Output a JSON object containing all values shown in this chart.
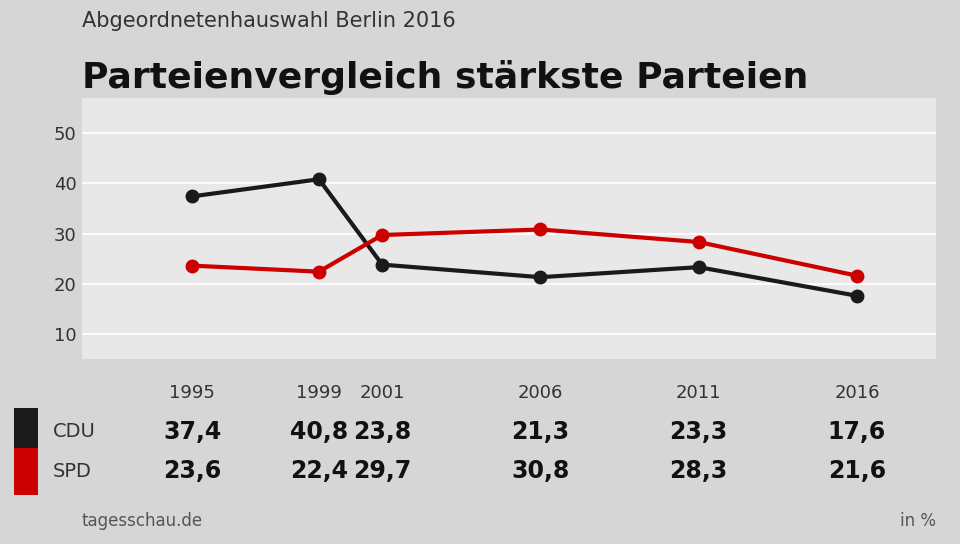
{
  "supertitle": "Abgeordnetenhauswahl Berlin 2016",
  "title": "Parteienvergleich stärkste Parteien",
  "years": [
    1995,
    1999,
    2001,
    2006,
    2011,
    2016
  ],
  "cdu": [
    37.4,
    40.8,
    23.8,
    21.3,
    23.3,
    17.6
  ],
  "spd": [
    23.6,
    22.4,
    29.7,
    30.8,
    28.3,
    21.6
  ],
  "cdu_color": "#1a1a1a",
  "spd_color": "#cc0000",
  "bg_color": "#d6d6d6",
  "plot_bg_color": "#e8e8e8",
  "table_bg_color": "#f5f5f5",
  "yticks": [
    10,
    20,
    30,
    40,
    50
  ],
  "ylim": [
    5,
    57
  ],
  "source": "tagesschau.de",
  "unit": "in %",
  "linewidth": 3.0,
  "markersize": 9,
  "supertitle_fontsize": 15,
  "title_fontsize": 26,
  "tick_fontsize": 13,
  "value_fontsize": 17,
  "label_fontsize": 14,
  "source_fontsize": 12
}
